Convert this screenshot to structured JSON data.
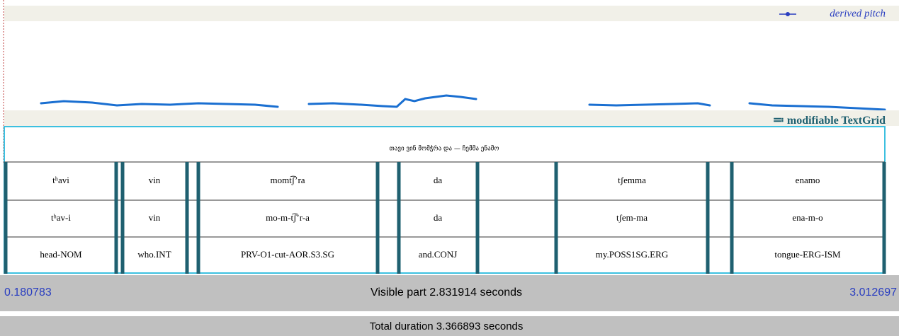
{
  "pitch_legend": "derived pitch",
  "textgrid_label": "modifiable TextGrid",
  "sentence": "თავი ვინ მომჭრა და — ჩემმა ენამო",
  "tiers": [
    {
      "labels": [
        "tʰavi",
        "vin",
        "momt͡ʃʼra",
        "da",
        "tʃemma",
        "enamo"
      ]
    },
    {
      "labels": [
        "tʰav-i",
        "vin",
        "mo-m-t͡ʃʼr-a",
        "da",
        "tʃem-ma",
        "ena-m-o"
      ]
    },
    {
      "labels": [
        "head-NOM",
        "who.INT",
        "PRV-O1-cut-AOR.S3.SG",
        "and.CONJ",
        "my.POSS1SG.ERG",
        "tongue-ERG-ISM"
      ]
    }
  ],
  "status": {
    "start": "0.180783",
    "visible": "Visible part 2.831914 seconds",
    "end": "3.012697",
    "total": "Total duration 3.366893 seconds"
  }
}
